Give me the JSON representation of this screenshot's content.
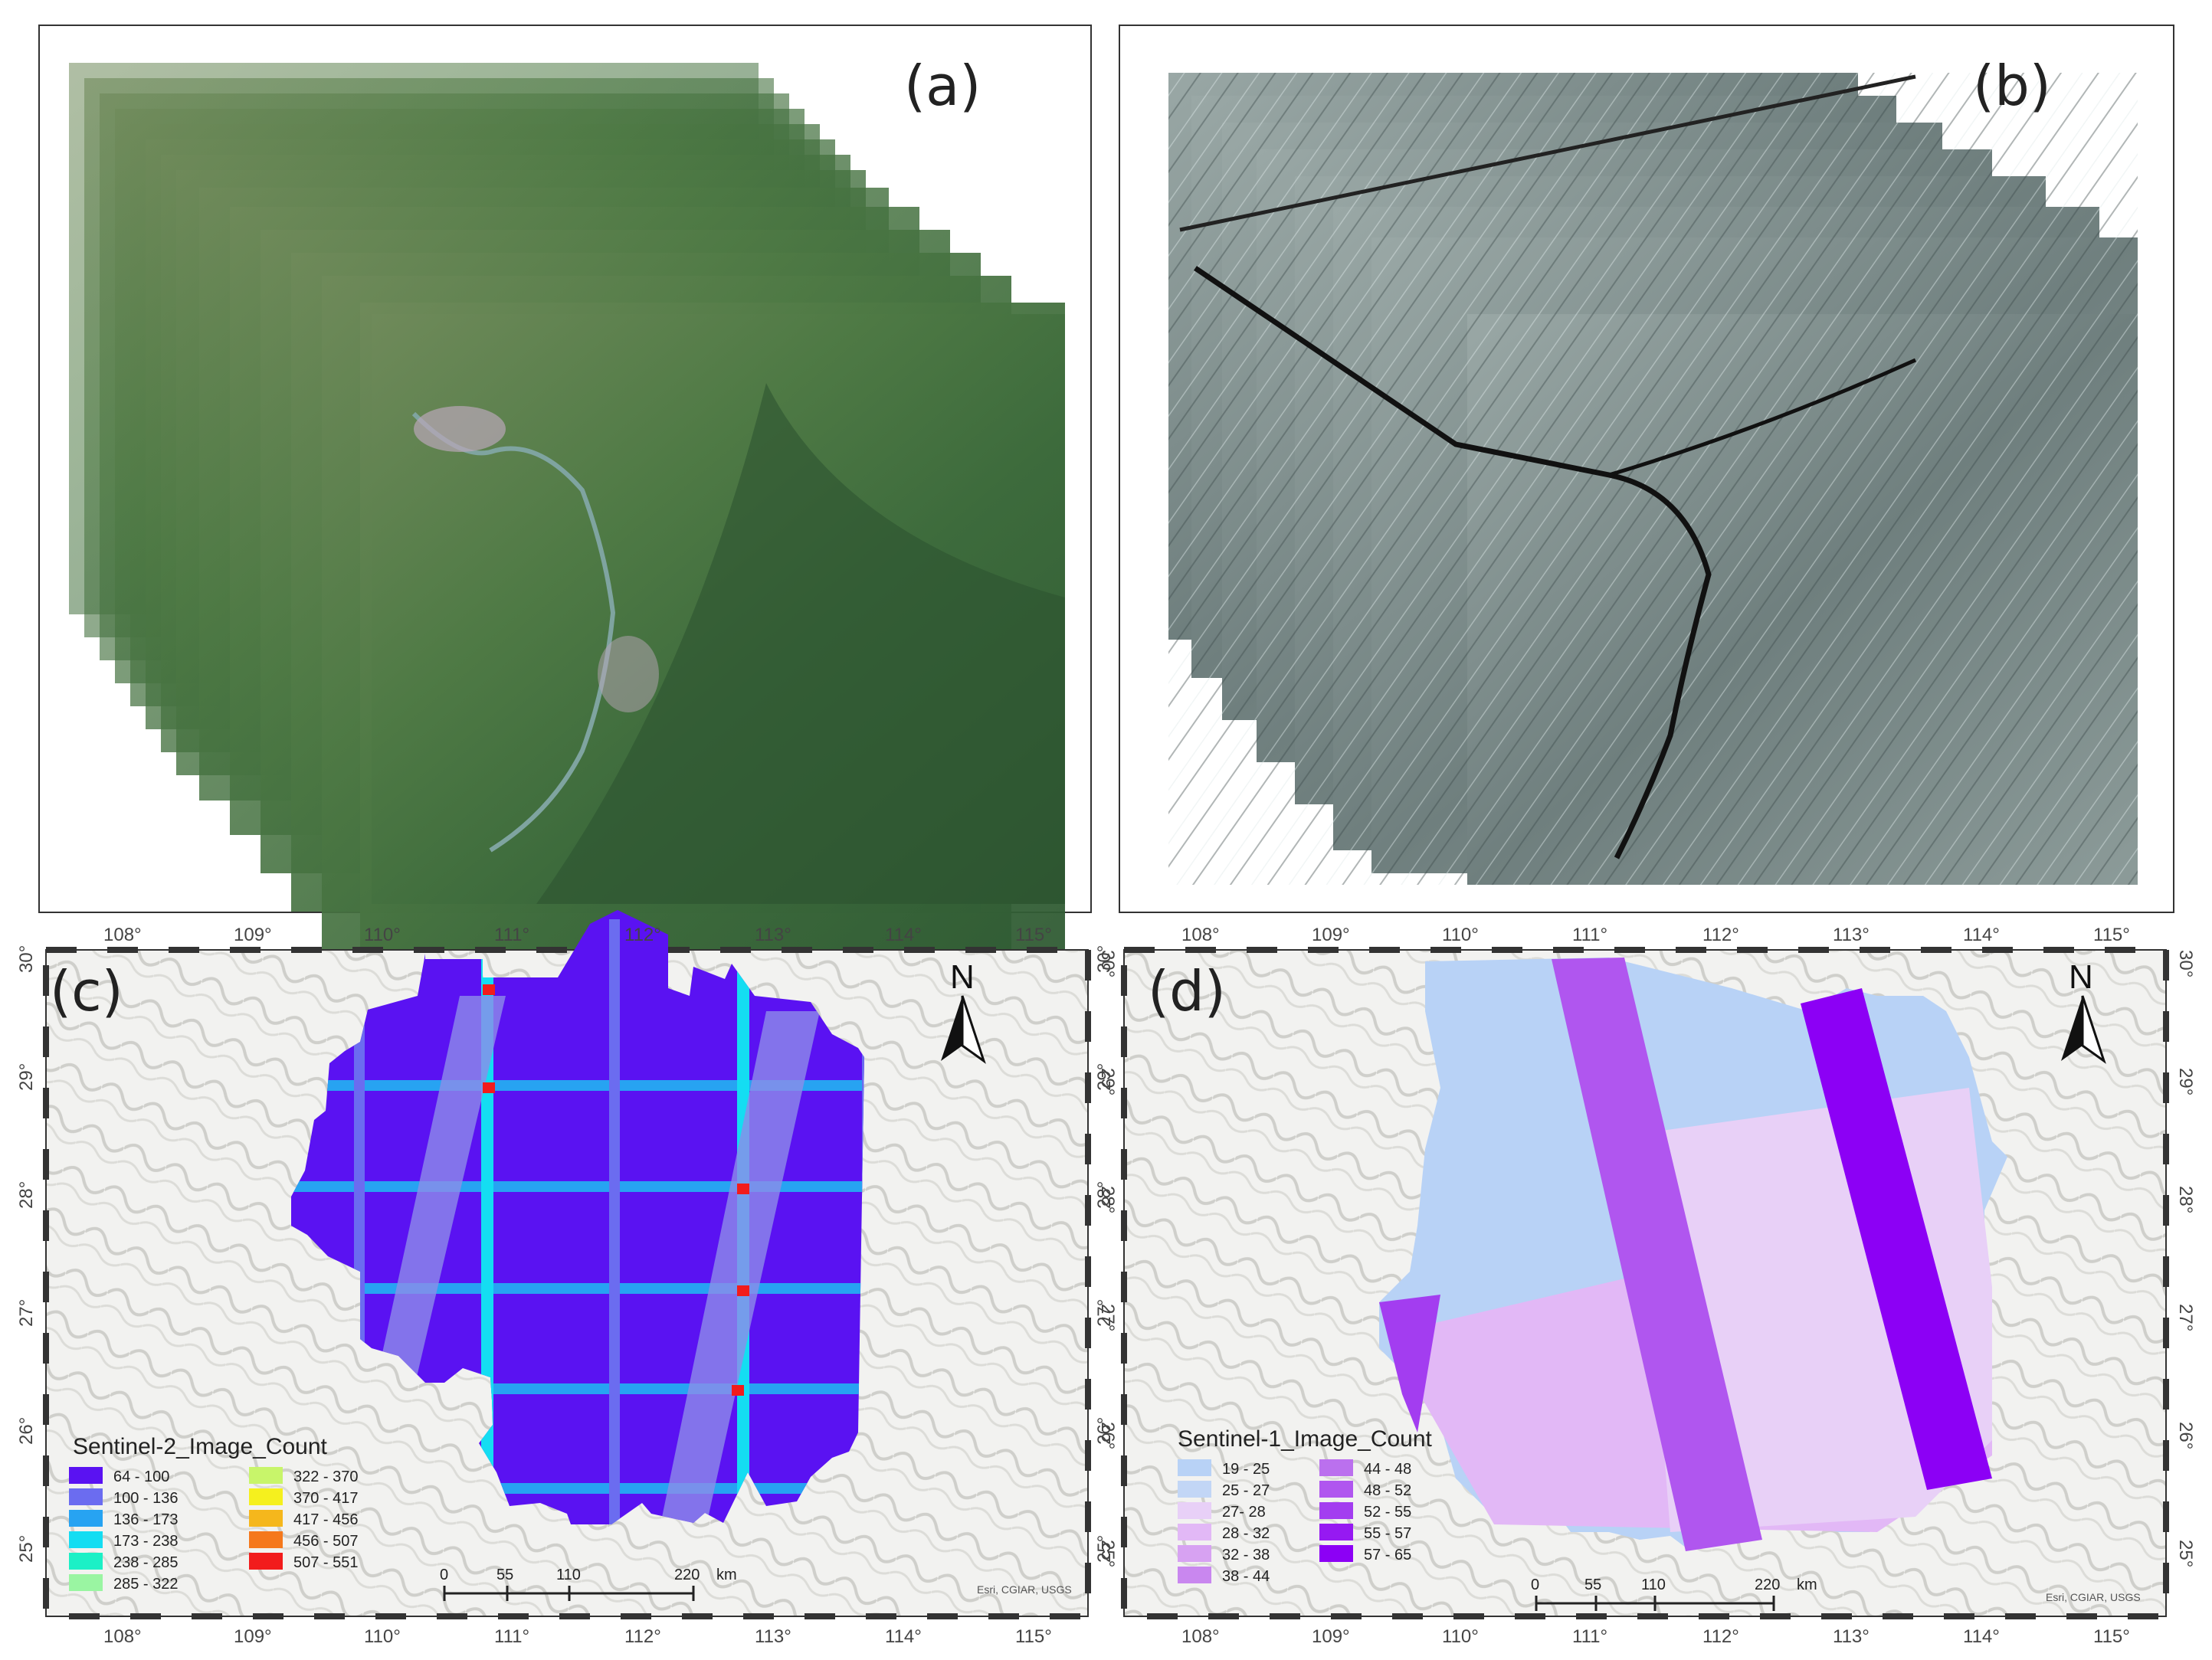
{
  "panels": {
    "a": {
      "label": "(a)"
    },
    "b": {
      "label": "(b)"
    },
    "c": {
      "label": "(c)",
      "legend_title": "Sentinel-2_Image_Count",
      "legend": [
        {
          "range": "64 - 100",
          "color": "#5a12f2"
        },
        {
          "range": "100 - 136",
          "color": "#6b6cf0"
        },
        {
          "range": "136 - 173",
          "color": "#27a3f2"
        },
        {
          "range": "173 - 238",
          "color": "#14ddf2"
        },
        {
          "range": "238 - 285",
          "color": "#1cf0c6"
        },
        {
          "range": "285 - 322",
          "color": "#9af5a2"
        },
        {
          "range": "322 - 370",
          "color": "#c8f56a"
        },
        {
          "range": "370 - 417",
          "color": "#f5f01e"
        },
        {
          "range": "417 - 456",
          "color": "#f5b71c"
        },
        {
          "range": "456 - 507",
          "color": "#f5781c"
        },
        {
          "range": "507 - 551",
          "color": "#f21c1c"
        }
      ],
      "north": "N",
      "scale_labels": [
        "0",
        "55",
        "110",
        "220"
      ],
      "scale_unit": "km",
      "credit": "Esri, CGIAR, USGS"
    },
    "d": {
      "label": "(d)",
      "legend_title": "Sentinel-1_Image_Count",
      "legend": [
        {
          "range": "19 - 25",
          "color": "#b8d2f6"
        },
        {
          "range": "25 - 27",
          "color": "#c2d6f6"
        },
        {
          "range": "27- 28",
          "color": "#e8d0f7"
        },
        {
          "range": "28 - 32",
          "color": "#e2b8f6"
        },
        {
          "range": "32 - 38",
          "color": "#d7a2f2"
        },
        {
          "range": "38 - 44",
          "color": "#c987ef"
        },
        {
          "range": "44 - 48",
          "color": "#bb70ee"
        },
        {
          "range": "48 - 52",
          "color": "#b056ef"
        },
        {
          "range": "52 - 55",
          "color": "#a33df0"
        },
        {
          "range": "55 - 57",
          "color": "#9619f2"
        },
        {
          "range": "57 - 65",
          "color": "#8c00f5"
        }
      ],
      "north": "N",
      "scale_labels": [
        "0",
        "55",
        "110",
        "220"
      ],
      "scale_unit": "km",
      "credit": "Esri, CGIAR, USGS"
    }
  },
  "lon_ticks": [
    "108°",
    "109°",
    "110°",
    "111°",
    "112°",
    "113°",
    "114°",
    "115°"
  ],
  "lat_ticks": [
    "30°",
    "29°",
    "28°",
    "27°",
    "26°",
    "25°"
  ]
}
